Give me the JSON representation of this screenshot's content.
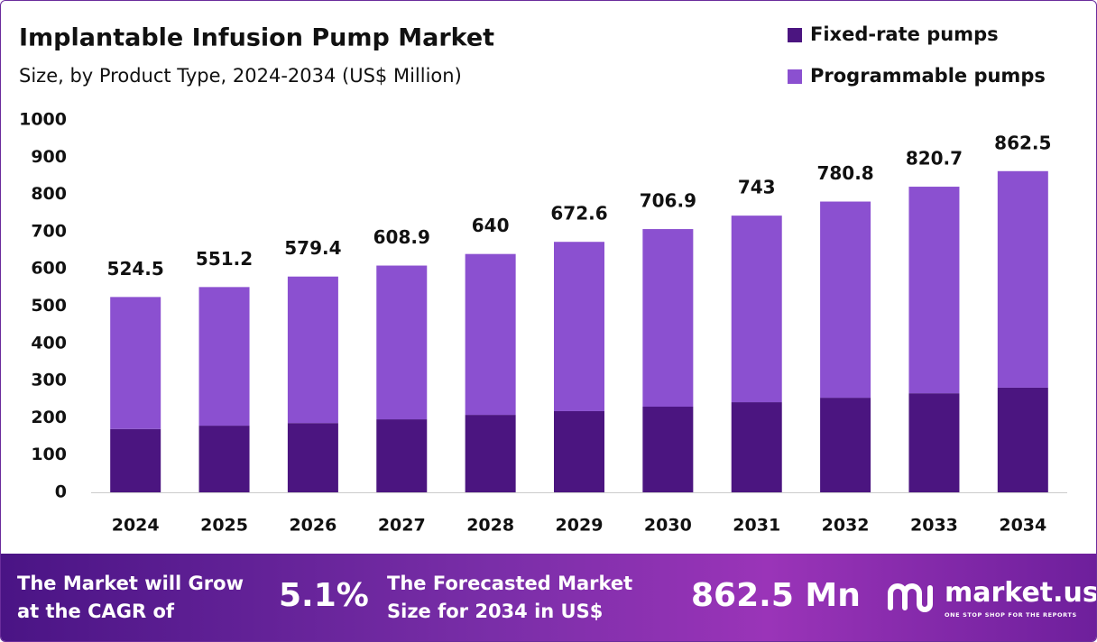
{
  "chart_data": {
    "type": "stacked_bar",
    "title": "Implantable Infusion Pump Market",
    "subtitle": "Size, by Product Type, 2024-2034 (US$ Million)",
    "categories": [
      "2024",
      "2025",
      "2026",
      "2027",
      "2028",
      "2029",
      "2030",
      "2031",
      "2032",
      "2033",
      "2034"
    ],
    "series": [
      {
        "name": "Fixed-rate pumps",
        "color": "#4b1580",
        "values": [
          170,
          179,
          186,
          196,
          208,
          218,
          230,
          242,
          254,
          266,
          281
        ]
      },
      {
        "name": "Programmable pumps",
        "color": "#8b50d0",
        "values": [
          354.5,
          372.2,
          393.4,
          412.9,
          432.0,
          454.6,
          476.9,
          501.0,
          526.8,
          554.7,
          581.5
        ]
      }
    ],
    "totals": [
      524.5,
      551.2,
      579.4,
      608.9,
      640.0,
      672.6,
      706.9,
      743.0,
      780.8,
      820.7,
      862.5
    ],
    "ylim": [
      0,
      1000
    ],
    "yticks": [
      0,
      100,
      200,
      300,
      400,
      500,
      600,
      700,
      800,
      900,
      1000
    ],
    "grid": false,
    "legend": "top-right"
  },
  "banner": {
    "cagr_label": [
      "The Market will Grow",
      "at the CAGR of"
    ],
    "cagr_value": "5.1%",
    "forecast_label": [
      "The Forecasted Market",
      "Size for 2034 in US$"
    ],
    "forecast_value": "862.5 Mn",
    "logo": "market.us",
    "tagline": "ONE STOP SHOP FOR THE REPORTS"
  }
}
